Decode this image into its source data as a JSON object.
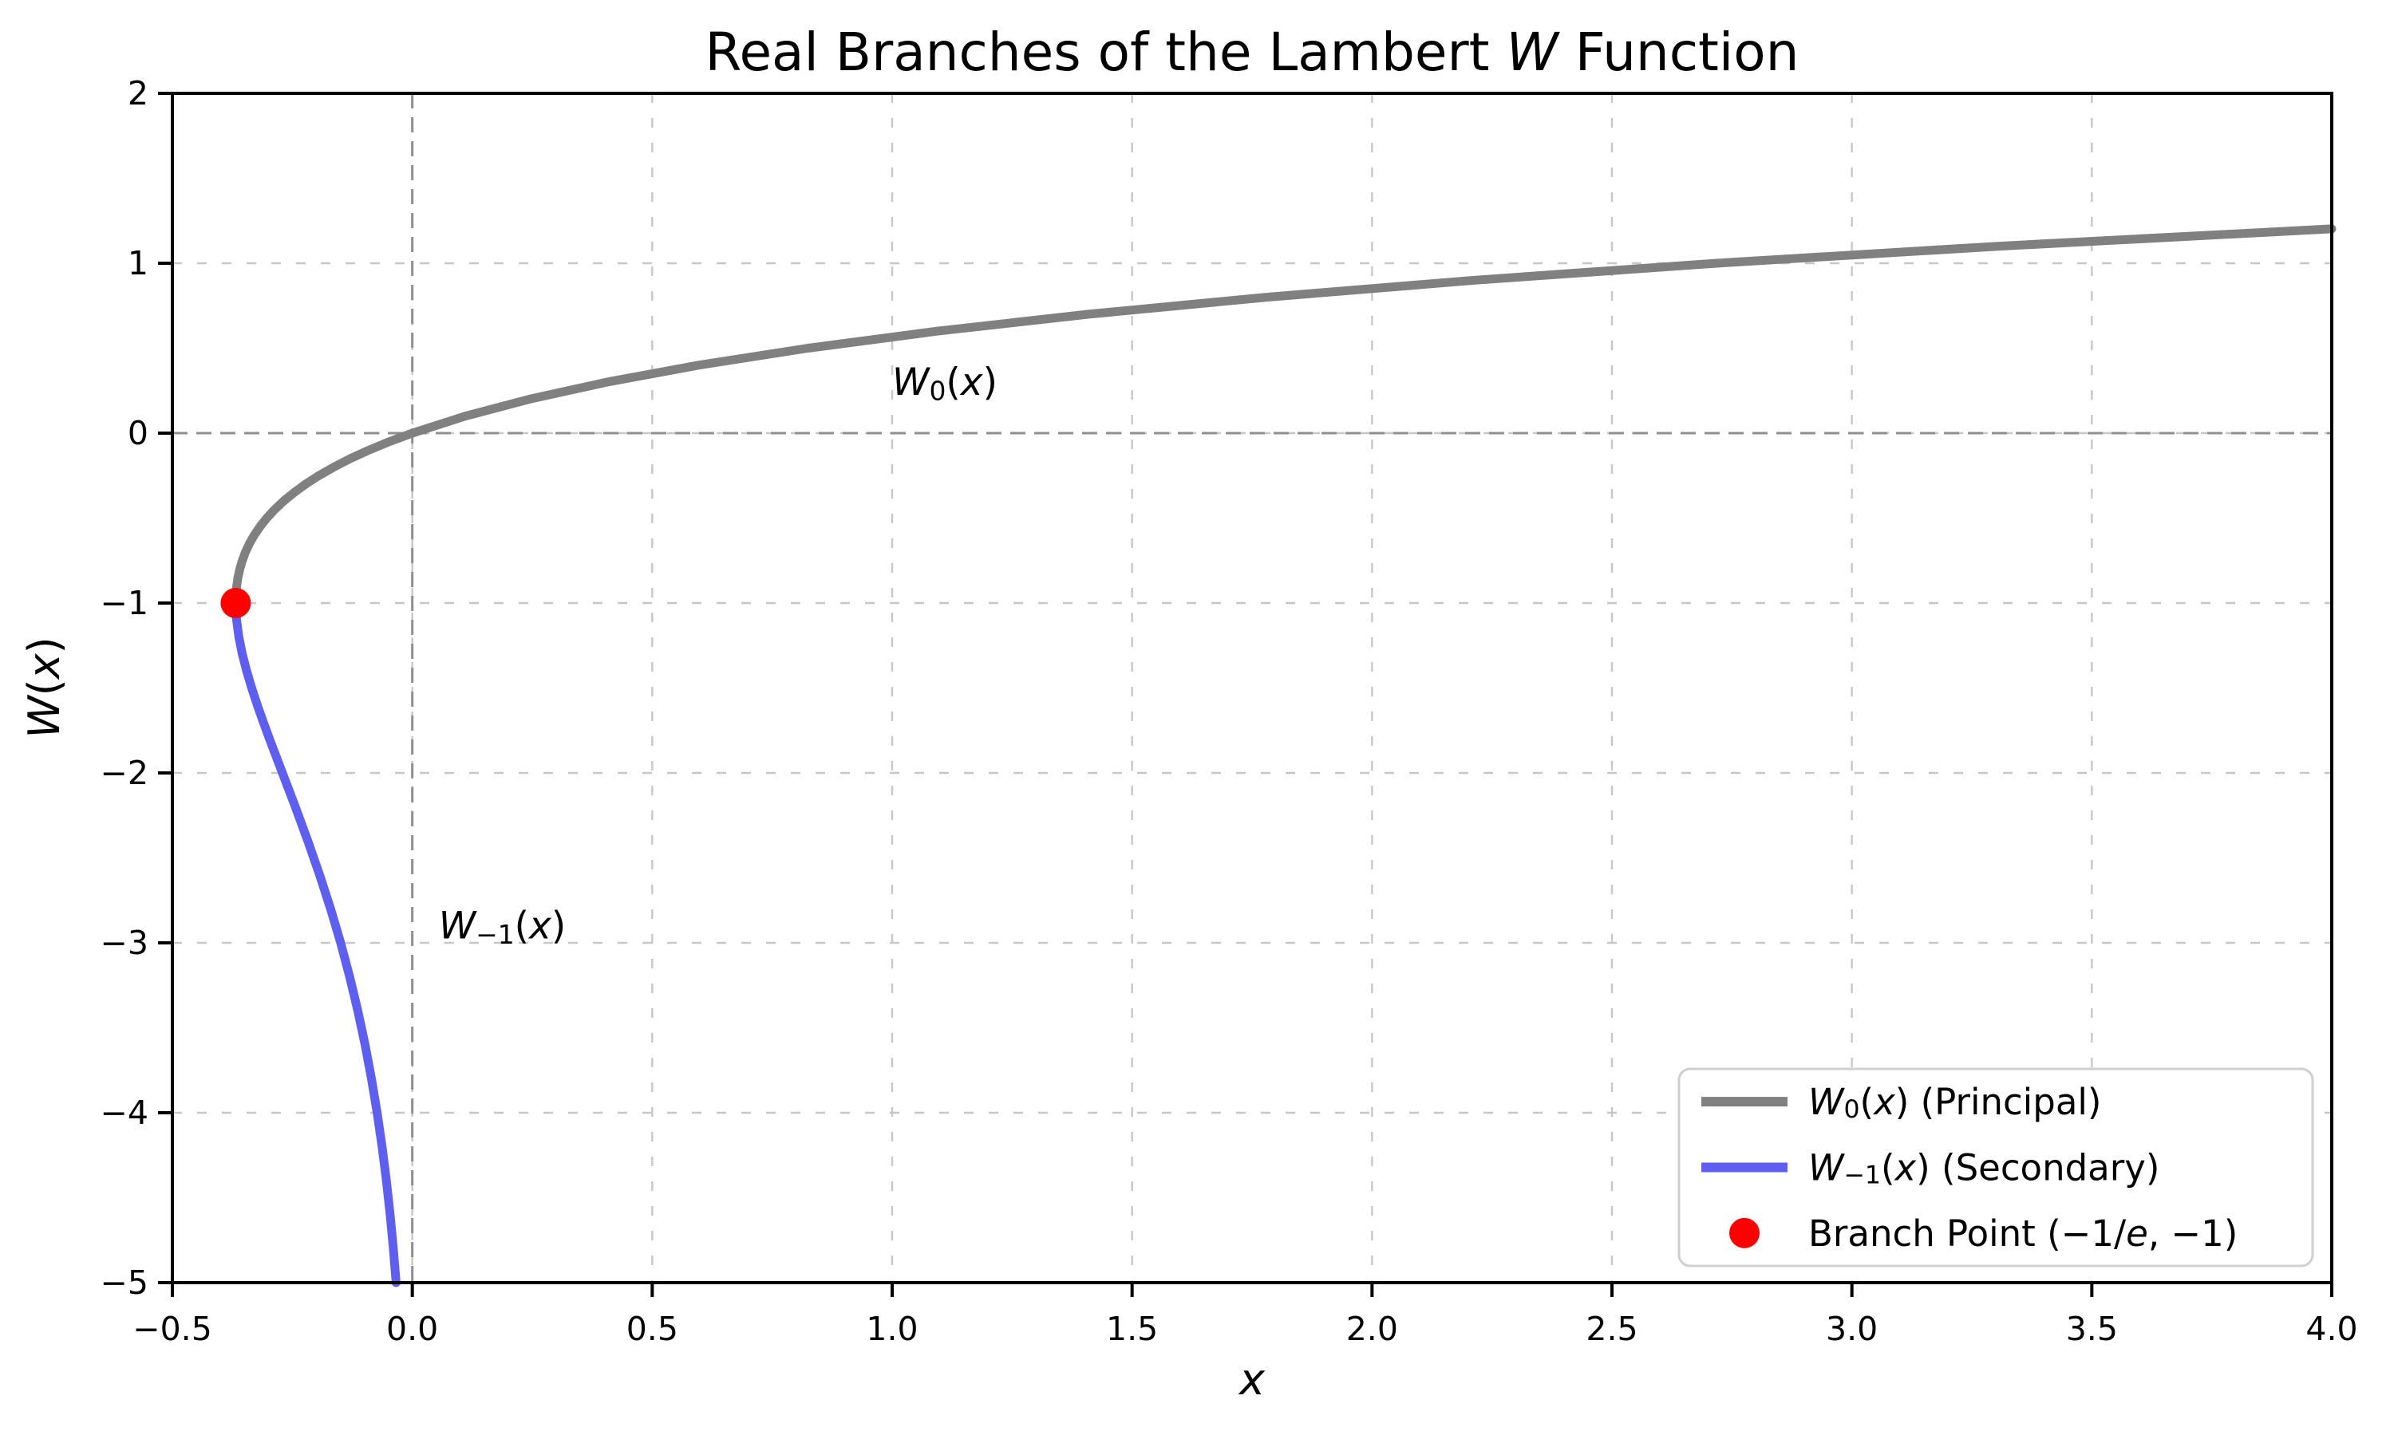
{
  "chart_data": {
    "type": "line",
    "title": "Real Branches of the Lambert W Function",
    "title_parts": [
      {
        "t": "Real Branches of the Lambert "
      },
      {
        "t": "W",
        "i": true
      },
      {
        "t": " Function"
      }
    ],
    "xlabel": "x",
    "xlabel_parts": [
      {
        "t": "x",
        "i": true
      }
    ],
    "ylabel": "W(x)",
    "ylabel_parts": [
      {
        "t": "W",
        "i": true
      },
      {
        "t": "("
      },
      {
        "t": "x",
        "i": true
      },
      {
        "t": ")"
      }
    ],
    "xlim": [
      -0.5,
      4.0
    ],
    "ylim": [
      -5,
      2
    ],
    "xticks": {
      "values": [
        -0.5,
        0.0,
        0.5,
        1.0,
        1.5,
        2.0,
        2.5,
        3.0,
        3.5,
        4.0
      ],
      "labels": [
        "−0.5",
        "0.0",
        "0.5",
        "1.0",
        "1.5",
        "2.0",
        "2.5",
        "3.0",
        "3.5",
        "4.0"
      ]
    },
    "yticks": {
      "values": [
        2,
        1,
        0,
        -1,
        -2,
        -3,
        -4,
        -5
      ],
      "labels": [
        "2",
        "1",
        "0",
        "−1",
        "−2",
        "−3",
        "−4",
        "−5"
      ]
    },
    "grid": {
      "on": true,
      "style": "dashed",
      "color": "#c7c7c7"
    },
    "reference_lines": {
      "color": "#8f8f8f",
      "style": "dashed",
      "lines": [
        {
          "axis": "x",
          "value": 0
        },
        {
          "axis": "y",
          "value": 0
        }
      ]
    },
    "series": [
      {
        "name": "W0-principal-branch",
        "label": "W₀(x) (Principal)",
        "color": "#808080",
        "points": [
          [
            -0.36788,
            -1.0
          ],
          [
            -0.3674,
            -0.95
          ],
          [
            -0.36591,
            -0.9
          ],
          [
            -0.3633,
            -0.85
          ],
          [
            -0.35946,
            -0.8
          ],
          [
            -0.35428,
            -0.75
          ],
          [
            -0.34761,
            -0.7
          ],
          [
            -0.33933,
            -0.65
          ],
          [
            -0.32929,
            -0.6
          ],
          [
            -0.31732,
            -0.55
          ],
          [
            -0.30327,
            -0.5
          ],
          [
            -0.28693,
            -0.45
          ],
          [
            -0.26813,
            -0.4
          ],
          [
            -0.24664,
            -0.35
          ],
          [
            -0.22224,
            -0.3
          ],
          [
            -0.1947,
            -0.25
          ],
          [
            -0.16375,
            -0.2
          ],
          [
            -0.12911,
            -0.15
          ],
          [
            -0.09048,
            -0.1
          ],
          [
            -0.04756,
            -0.05
          ],
          [
            0.0,
            0.0
          ],
          [
            0.11052,
            0.1
          ],
          [
            0.24428,
            0.2
          ],
          [
            0.40496,
            0.3
          ],
          [
            0.59673,
            0.4
          ],
          [
            0.82436,
            0.5
          ],
          [
            1.09327,
            0.6
          ],
          [
            1.40963,
            0.7
          ],
          [
            1.78043,
            0.8
          ],
          [
            2.21364,
            0.9
          ],
          [
            2.71828,
            1.0
          ],
          [
            3.30458,
            1.1
          ],
          [
            4.0,
            1.20217
          ]
        ]
      },
      {
        "name": "W-1-secondary-branch",
        "label": "W₋₁(x) (Secondary)",
        "color": "#5f5fef",
        "points": [
          [
            -0.36788,
            -1.0
          ],
          [
            -0.36744,
            -1.05
          ],
          [
            -0.36616,
            -1.1
          ],
          [
            -0.36143,
            -1.2
          ],
          [
            -0.35429,
            -1.3
          ],
          [
            -0.34524,
            -1.4
          ],
          [
            -0.3347,
            -1.5
          ],
          [
            -0.32303,
            -1.6
          ],
          [
            -0.31056,
            -1.7
          ],
          [
            -0.29754,
            -1.8
          ],
          [
            -0.28418,
            -1.9
          ],
          [
            -0.27067,
            -2.0
          ],
          [
            -0.24377,
            -2.2
          ],
          [
            -0.21772,
            -2.4
          ],
          [
            -0.19311,
            -2.6
          ],
          [
            -0.17027,
            -2.8
          ],
          [
            -0.14936,
            -3.0
          ],
          [
            -0.13044,
            -3.2
          ],
          [
            -0.11347,
            -3.4
          ],
          [
            -0.09837,
            -3.6
          ],
          [
            -0.08501,
            -3.8
          ],
          [
            -0.07326,
            -4.0
          ],
          [
            -0.06298,
            -4.2
          ],
          [
            -0.05402,
            -4.4
          ],
          [
            -0.04624,
            -4.6
          ],
          [
            -0.0395,
            -4.8
          ],
          [
            -0.03369,
            -5.0
          ]
        ]
      }
    ],
    "marker": {
      "name": "branch-point",
      "label": "Branch Point (−1/e, −1)",
      "x": -0.36788,
      "y": -1,
      "color": "#ff0000"
    },
    "annotations": [
      {
        "label": "W₀(x)",
        "parts": [
          {
            "t": "W",
            "i": true
          },
          {
            "t": "0",
            "sub": true
          },
          {
            "t": "("
          },
          {
            "t": "x",
            "i": true
          },
          {
            "t": ")"
          }
        ],
        "x": 1.0,
        "y": 0.3,
        "color": "#808080"
      },
      {
        "label": "W₋₁(x)",
        "parts": [
          {
            "t": "W",
            "i": true
          },
          {
            "t": "−1",
            "sub": true
          },
          {
            "t": "("
          },
          {
            "t": "x",
            "i": true
          },
          {
            "t": ")"
          }
        ],
        "x": 0.055,
        "y": -2.9,
        "color": "#5f5fef"
      }
    ],
    "legend": {
      "position": "lower right",
      "border_color": "#cfcfcf",
      "background": "#ffffff",
      "entries": [
        {
          "swatch": "line",
          "color": "#808080",
          "label": "W₀(x) (Principal)",
          "parts": [
            {
              "t": "W",
              "i": true
            },
            {
              "t": "0",
              "sub": true
            },
            {
              "t": "("
            },
            {
              "t": "x",
              "i": true
            },
            {
              "t": ")"
            },
            {
              "t": " (Principal)"
            }
          ]
        },
        {
          "swatch": "line",
          "color": "#5f5fef",
          "label": "W₋₁(x) (Secondary)",
          "parts": [
            {
              "t": "W",
              "i": true
            },
            {
              "t": "−1",
              "sub": true
            },
            {
              "t": "("
            },
            {
              "t": "x",
              "i": true
            },
            {
              "t": ")"
            },
            {
              "t": " (Secondary)"
            }
          ]
        },
        {
          "swatch": "dot",
          "color": "#ff0000",
          "label": "Branch Point (−1/e, −1)",
          "parts": [
            {
              "t": "Branch Point (−1/"
            },
            {
              "t": "e",
              "i": true
            },
            {
              "t": ", −1)"
            }
          ]
        }
      ]
    }
  }
}
